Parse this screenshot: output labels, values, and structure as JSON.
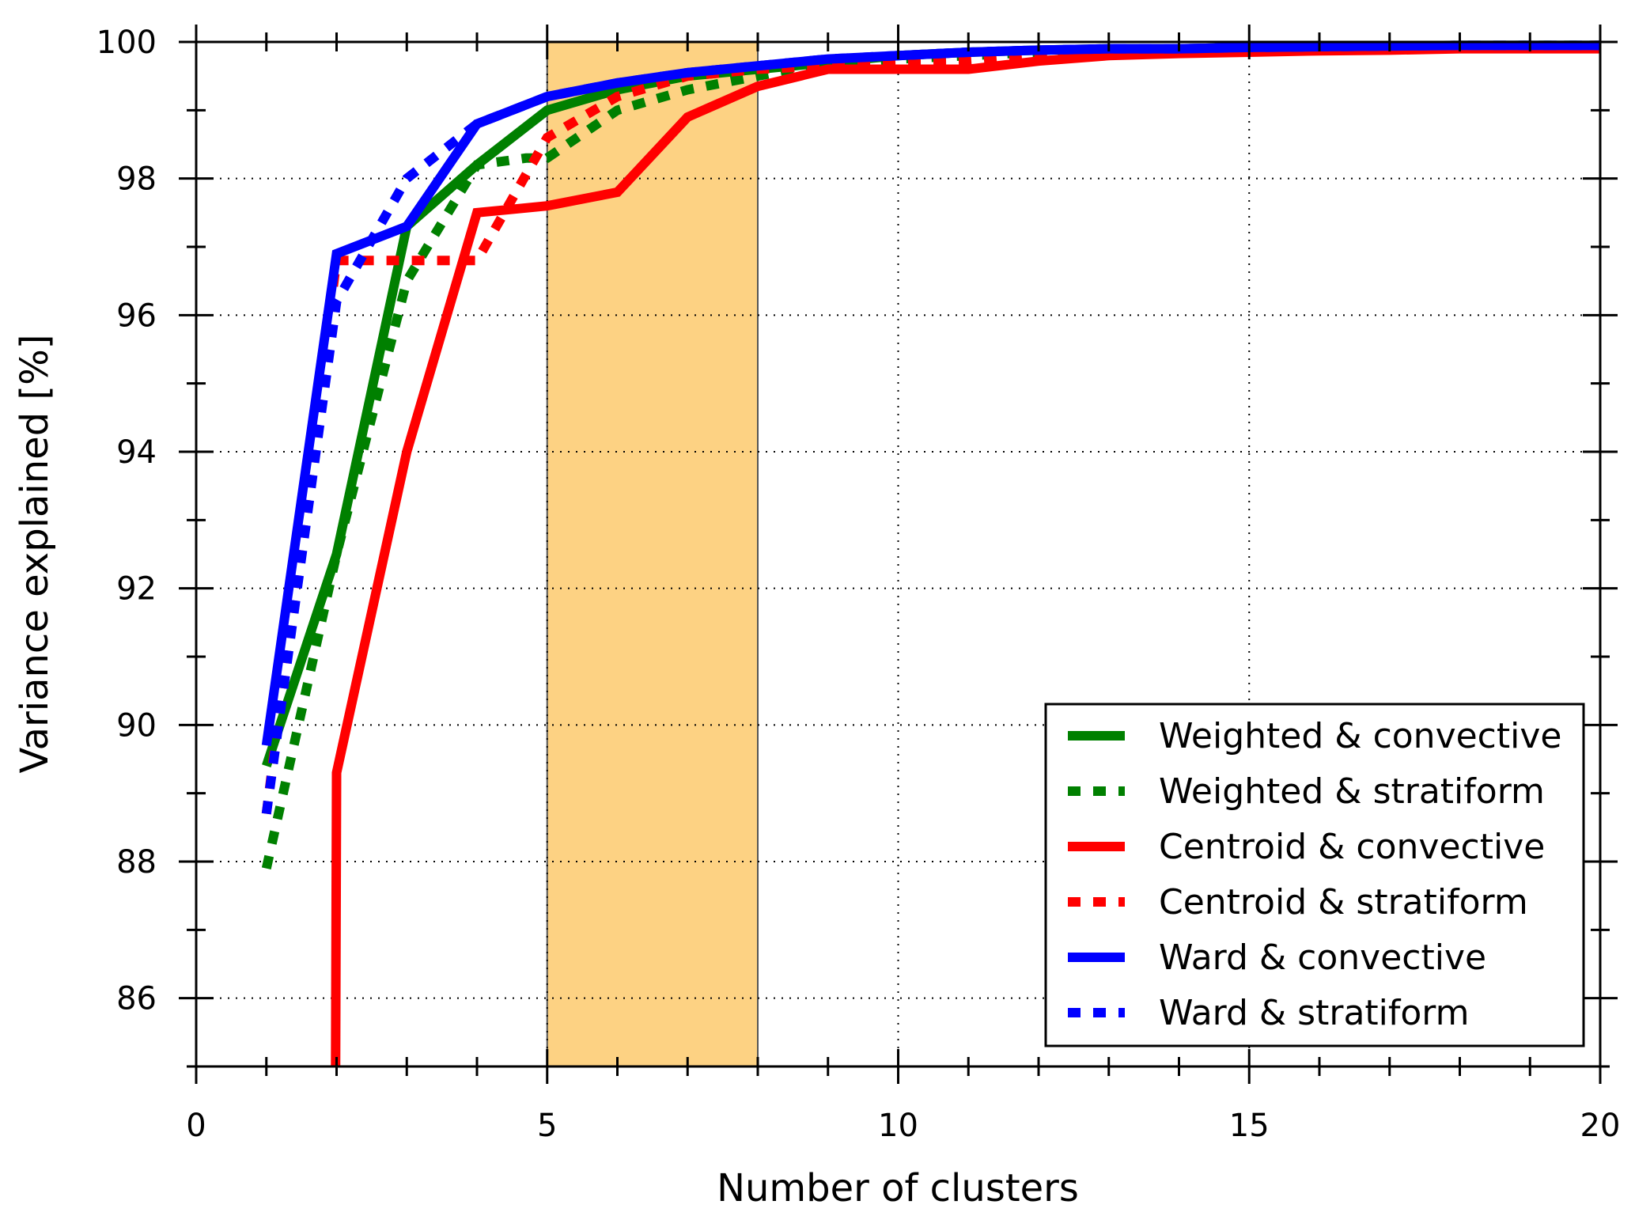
{
  "chart_data": {
    "type": "line",
    "xlabel": "Number of clusters",
    "ylabel": "Variance explained [%]",
    "xlim": [
      0,
      20
    ],
    "ylim": [
      85,
      100
    ],
    "xticks": [
      0,
      5,
      10,
      15,
      20
    ],
    "yticks": [
      86,
      88,
      90,
      92,
      94,
      96,
      98,
      100
    ],
    "grid": true,
    "legend_position": "bottom-right",
    "highlight_span": {
      "from": 5,
      "to": 8,
      "color": "#fdd283"
    },
    "series": [
      {
        "name": "Weighted & convective",
        "color": "#008000",
        "style": "solid",
        "x": [
          1,
          2,
          3,
          4,
          5,
          6,
          7,
          8,
          9,
          10,
          11,
          12,
          13,
          14,
          15,
          16,
          17,
          18,
          19,
          20
        ],
        "y": [
          89.4,
          92.5,
          97.3,
          98.2,
          99.0,
          99.3,
          99.5,
          99.6,
          99.7,
          99.8,
          99.85,
          99.88,
          99.9,
          99.9,
          99.92,
          99.93,
          99.94,
          99.95,
          99.95,
          99.95
        ]
      },
      {
        "name": "Weighted & stratiform",
        "color": "#008000",
        "style": "dotted",
        "x": [
          1,
          2,
          3,
          4,
          4.7,
          5,
          6,
          7,
          8,
          9,
          10,
          11,
          12,
          13,
          14,
          15,
          16,
          17,
          18,
          19,
          20
        ],
        "y": [
          87.9,
          92.5,
          96.5,
          98.2,
          98.3,
          98.3,
          99.0,
          99.3,
          99.5,
          99.7,
          99.75,
          99.8,
          99.85,
          99.88,
          99.9,
          99.9,
          99.92,
          99.93,
          99.94,
          99.95,
          99.95
        ]
      },
      {
        "name": "Centroid & convective",
        "color": "#ff0000",
        "style": "solid",
        "x": [
          1.97,
          2,
          3,
          4,
          5,
          6,
          7,
          8,
          9,
          10,
          11,
          12,
          13,
          14,
          15,
          16,
          17,
          18,
          19,
          20
        ],
        "y": [
          80,
          89.3,
          94.0,
          97.5,
          97.6,
          97.8,
          98.9,
          99.35,
          99.6,
          99.6,
          99.6,
          99.72,
          99.8,
          99.83,
          99.85,
          99.87,
          99.88,
          99.9,
          99.9,
          99.9
        ]
      },
      {
        "name": "Centroid & stratiform",
        "color": "#ff0000",
        "style": "dotted",
        "x": [
          1,
          2,
          3,
          4,
          5,
          6,
          7,
          8,
          9,
          10,
          11,
          12,
          13,
          14,
          15,
          16,
          17,
          18,
          19,
          20
        ],
        "y": [
          88.7,
          96.8,
          96.8,
          96.8,
          98.6,
          99.2,
          99.5,
          99.6,
          99.65,
          99.7,
          99.72,
          99.8,
          99.85,
          99.88,
          99.9,
          99.9,
          99.92,
          99.93,
          99.94,
          99.95
        ]
      },
      {
        "name": "Ward & convective",
        "color": "#0000ff",
        "style": "solid",
        "x": [
          1,
          2,
          3,
          4,
          5,
          6,
          7,
          8,
          9,
          10,
          11,
          12,
          13,
          14,
          15,
          16,
          17,
          18,
          19,
          20
        ],
        "y": [
          89.7,
          96.9,
          97.3,
          98.8,
          99.2,
          99.4,
          99.55,
          99.65,
          99.75,
          99.8,
          99.85,
          99.88,
          99.9,
          99.9,
          99.92,
          99.93,
          99.94,
          99.95,
          99.95,
          99.95
        ]
      },
      {
        "name": "Ward & stratiform",
        "color": "#0000ff",
        "style": "dotted",
        "x": [
          1,
          2,
          3,
          4,
          5,
          6,
          7,
          8,
          9,
          10,
          11,
          12,
          13,
          14,
          15,
          16,
          17,
          18,
          19,
          20
        ],
        "y": [
          88.7,
          96.2,
          98.0,
          98.8,
          99.2,
          99.4,
          99.55,
          99.65,
          99.75,
          99.8,
          99.85,
          99.88,
          99.9,
          99.9,
          99.92,
          99.93,
          99.94,
          99.95,
          99.95,
          99.95
        ]
      }
    ]
  }
}
